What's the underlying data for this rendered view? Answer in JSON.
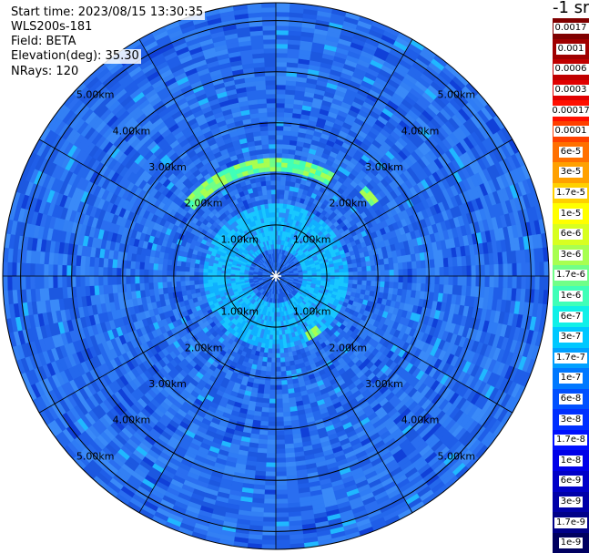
{
  "header": {
    "start_time": "Start time: 2023/08/15 13:30:35",
    "instrument": "WLS200s-181",
    "field": "Field: BETA",
    "elevation": "Elevation(deg): 35.30",
    "nrays": "NRays: 120"
  },
  "colorbar": {
    "unit_label": "-1 sr",
    "labels": [
      "0.0017",
      "0.001",
      "0.0006",
      "0.0003",
      "0.00017",
      "0.0001",
      "6e-5",
      "3e-5",
      "1.7e-5",
      "1e-5",
      "6e-6",
      "3e-6",
      "1.7e-6",
      "1e-6",
      "6e-7",
      "3e-7",
      "1.7e-7",
      "1e-7",
      "6e-8",
      "3e-8",
      "1.7e-8",
      "1e-8",
      "6e-9",
      "3e-9",
      "1.7e-9",
      "1e-9"
    ],
    "colors": [
      "#800000",
      "#a00000",
      "#c00000",
      "#e00000",
      "#ff1000",
      "#ff4000",
      "#ff7000",
      "#ffa000",
      "#ffd000",
      "#ffff00",
      "#d8ff20",
      "#a8ff50",
      "#70ff88",
      "#40ffb8",
      "#10f0e8",
      "#00c8ff",
      "#00a0ff",
      "#0078ff",
      "#0050ff",
      "#0030ff",
      "#0010ff",
      "#0000e8",
      "#0000c8",
      "#0000a8",
      "#000088",
      "#000060"
    ]
  },
  "chart_data": {
    "type": "heatmap",
    "projection": "polar-ppi",
    "field": "BETA",
    "rings_km": [
      1,
      2,
      3,
      4,
      5
    ],
    "max_range_km": 5.35,
    "spokes_deg": [
      0,
      30,
      60,
      90,
      120,
      150,
      180,
      210,
      240,
      270,
      300,
      330
    ],
    "ring_labels": [
      "1.00km",
      "2.00km",
      "3.00km",
      "4.00km",
      "5.00km"
    ],
    "scale": "log",
    "value_range": [
      1e-09,
      0.0017
    ],
    "features": [
      {
        "description": "arc",
        "range_km": [
          2.05,
          2.35
        ],
        "azimuth_deg": [
          -52,
          30
        ],
        "level": "1.7e-6 to 6e-6"
      },
      {
        "description": "patch",
        "range_km": [
          2.3,
          2.5
        ],
        "azimuth_deg": [
          46,
          54
        ],
        "level": "1.7e-6 to 3e-6"
      },
      {
        "description": "patch",
        "range_km": [
          1.25,
          1.45
        ],
        "azimuth_deg": [
          142,
          152
        ],
        "level": "1.7e-6 to 3e-6"
      },
      {
        "description": "patch",
        "range_km": [
          2.6,
          2.85
        ],
        "azimuth_deg": [
          195,
          200
        ],
        "level": "1.7e-6 to 3e-6"
      }
    ],
    "background_level": "1e-8 to 6e-8",
    "near_range_level": "1.7e-7 to 6e-7"
  }
}
